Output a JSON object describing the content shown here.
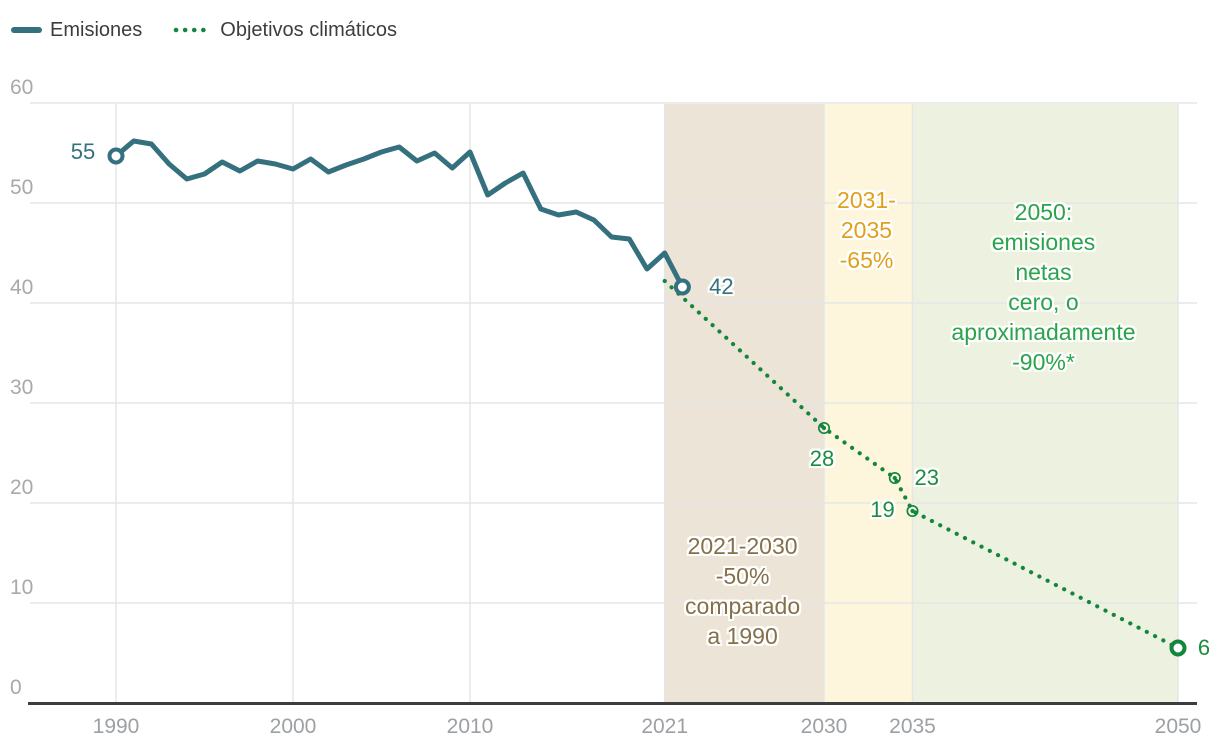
{
  "legend": {
    "items": [
      {
        "label": "Emisiones",
        "style": "solid"
      },
      {
        "label": "Objetivos climáticos",
        "style": "dotted"
      }
    ]
  },
  "chart_data": {
    "type": "line",
    "title": "",
    "x_ticks": [
      1990,
      2000,
      2010,
      2021,
      2030,
      2035,
      2050
    ],
    "y_ticks": [
      0,
      10,
      20,
      30,
      40,
      50,
      60
    ],
    "ylim": [
      0,
      60
    ],
    "xlim": [
      1985,
      2051
    ],
    "grid": true,
    "legend_position": "top-left",
    "colors": {
      "emisiones": "#35707e",
      "objetivos_line": "#12873c",
      "objetivos_label": "#1d8c41",
      "grid": "#e6e6e6",
      "axis": "#3d3d3d",
      "tick_label": "#9da0a3"
    },
    "series": [
      {
        "name": "Emisiones",
        "style": "solid",
        "color": "#35707e",
        "years": [
          1990,
          1991,
          1992,
          1993,
          1994,
          1995,
          1996,
          1997,
          1998,
          1999,
          2000,
          2001,
          2002,
          2003,
          2004,
          2005,
          2006,
          2007,
          2008,
          2009,
          2010,
          2011,
          2012,
          2013,
          2014,
          2015,
          2016,
          2017,
          2018,
          2019,
          2020,
          2021,
          2022
        ],
        "values": [
          54.7,
          56.2,
          55.9,
          53.9,
          52.4,
          52.9,
          54.1,
          53.2,
          54.2,
          53.9,
          53.4,
          54.4,
          53.1,
          53.8,
          54.4,
          55.1,
          55.6,
          54.2,
          55.0,
          53.5,
          55.1,
          50.8,
          52.0,
          53.0,
          49.4,
          48.8,
          49.1,
          48.3,
          46.6,
          46.4,
          43.4,
          45.0,
          41.6
        ],
        "markers": [
          {
            "year": 1990,
            "value": 54.7,
            "label": "55",
            "label_dx": -33,
            "label_dy": -4
          },
          {
            "year": 2022,
            "value": 41.6,
            "label": "42",
            "label_dx": 39,
            "label_dy": 0
          }
        ]
      },
      {
        "name": "Objetivos climáticos",
        "style": "dotted",
        "color": "#12873c",
        "label_color": "#1d8c41",
        "points": [
          {
            "year": 2021,
            "value": 42.2,
            "label": "",
            "marker": "none"
          },
          {
            "year": 2030,
            "value": 27.5,
            "label": "28",
            "marker": "small",
            "label_dx": -2,
            "label_dy": 31
          },
          {
            "year": 2034,
            "value": 22.5,
            "label": "23",
            "marker": "small",
            "label_dx": 32,
            "label_dy": 0
          },
          {
            "year": 2035,
            "value": 19.2,
            "label": "19",
            "marker": "small",
            "label_dx": -30,
            "label_dy": -1
          },
          {
            "year": 2050,
            "value": 5.5,
            "label": "6",
            "marker": "big",
            "label_dx": 26,
            "label_dy": 0
          }
        ]
      }
    ],
    "bands": [
      {
        "from": 2021,
        "to": 2030,
        "color": "#ece4d6",
        "name": "periodo-2021-2030"
      },
      {
        "from": 2030,
        "to": 2035,
        "color": "#fdf5dc",
        "name": "periodo-2031-2035"
      },
      {
        "from": 2035,
        "to": 2050,
        "color": "#edf1df",
        "name": "periodo-2036-2050"
      }
    ],
    "annotations": [
      {
        "lines": [
          "2021-2030",
          "-50%",
          "comparado",
          "a 1990"
        ],
        "color": "#857049",
        "center_year": 2025.4,
        "top_value": 17.2
      },
      {
        "lines": [
          "2031-",
          "2035",
          "-65%"
        ],
        "color": "#e0a01b",
        "center_year": 2032.4,
        "top_value": 51.8
      },
      {
        "lines": [
          "2050:",
          "emisiones",
          "netas",
          "cero, o",
          "aproximadamente",
          "-90%*"
        ],
        "color": "#2ba34a",
        "center_year": 2042.4,
        "top_value": 50.6
      }
    ]
  }
}
